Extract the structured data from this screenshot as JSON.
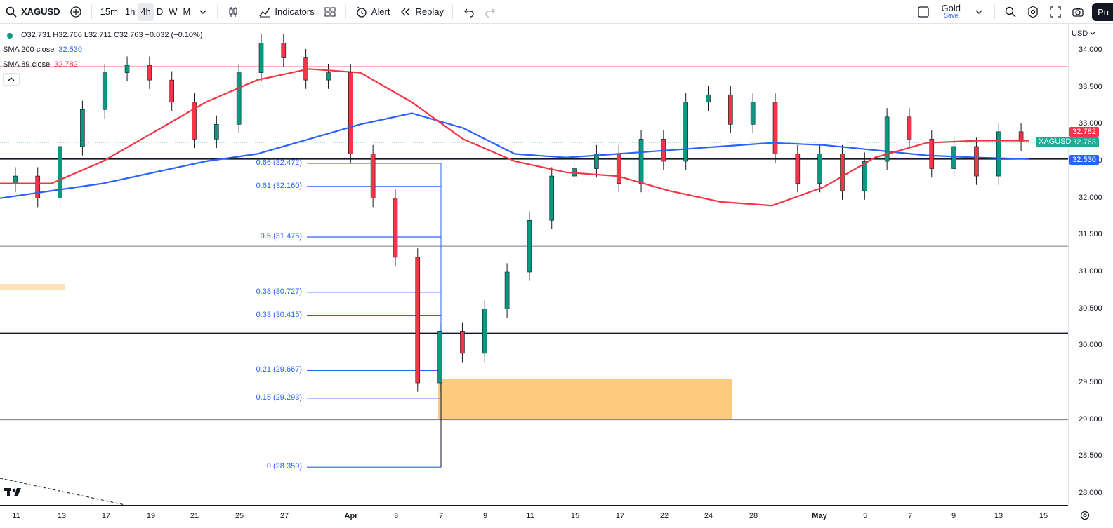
{
  "toolbar": {
    "symbol": "XAGUSD",
    "intervals": [
      "15m",
      "1h",
      "4h",
      "D",
      "W",
      "M"
    ],
    "active_interval": "4h",
    "indicators_label": "Indicators",
    "alert_label": "Alert",
    "replay_label": "Replay",
    "layout_name": "Gold",
    "layout_save": "Save",
    "publish_label": "Pu"
  },
  "legend": {
    "ohlc": "O32.731 H32.766 L32.711 C32.763 +0.032 (+0.10%)",
    "sma200_label": "SMA 200 close",
    "sma200_value": "32.530",
    "sma89_label": "SMA 89 close",
    "sma89_value": "32.782"
  },
  "price_axis": {
    "currency": "USD",
    "ticks": [
      "34.000",
      "33.500",
      "33.000",
      "32.500",
      "32.000",
      "31.500",
      "31.000",
      "30.500",
      "30.000",
      "29.500",
      "29.000",
      "28.500",
      "28.000"
    ],
    "labels": [
      {
        "text": "32.782",
        "color": "#f23645"
      },
      {
        "text": "32.763",
        "color": "#22ab94"
      },
      {
        "text": "32.530",
        "color": "#2962ff"
      }
    ],
    "symbol_tag": "XAGUSD"
  },
  "time_axis": {
    "ticks": [
      {
        "text": "11"
      },
      {
        "text": "13"
      },
      {
        "text": "17"
      },
      {
        "text": "19"
      },
      {
        "text": "21"
      },
      {
        "text": "25"
      },
      {
        "text": "27"
      },
      {
        "text": "Apr",
        "bold": true
      },
      {
        "text": "3"
      },
      {
        "text": "7"
      },
      {
        "text": "9"
      },
      {
        "text": "11"
      },
      {
        "text": "15"
      },
      {
        "text": "17"
      },
      {
        "text": "22"
      },
      {
        "text": "24"
      },
      {
        "text": "28"
      },
      {
        "text": "May",
        "bold": true
      },
      {
        "text": "5"
      },
      {
        "text": "7"
      },
      {
        "text": "9"
      },
      {
        "text": "13"
      },
      {
        "text": "15"
      }
    ]
  },
  "fib_levels": [
    {
      "label": "0.66 (32.472)",
      "price": 32.472
    },
    {
      "label": "0.61 (32.160)",
      "price": 32.16
    },
    {
      "label": "0.5 (31.475)",
      "price": 31.475
    },
    {
      "label": "0.38 (30.727)",
      "price": 30.727
    },
    {
      "label": "0.33 (30.415)",
      "price": 30.415
    },
    {
      "label": "0.21 (29.667)",
      "price": 29.667
    },
    {
      "label": "0.15 (29.293)",
      "price": 29.293
    },
    {
      "label": "0 (28.359)",
      "price": 28.359
    }
  ],
  "chart_data": {
    "type": "candlestick",
    "symbol": "XAGUSD",
    "interval": "4h",
    "ylim": [
      27.85,
      34.3
    ],
    "horizontal_lines": [
      {
        "price": 33.78,
        "color": "#f23645"
      },
      {
        "price": 32.53,
        "color": "#131722"
      },
      {
        "price": 31.35,
        "color": "#787b86"
      },
      {
        "price": 30.17,
        "color": "#131722"
      },
      {
        "price": 29.0,
        "color": "#787b86"
      }
    ],
    "zones": [
      {
        "from_price": 29.55,
        "to_price": 29.0,
        "color": "#fdc56f"
      }
    ],
    "sma200": [
      32.0,
      32.1,
      32.2,
      32.35,
      32.5,
      32.6,
      32.8,
      33.0,
      33.15,
      32.95,
      32.6,
      32.55,
      32.6,
      32.65,
      32.7,
      32.75,
      32.72,
      32.65,
      32.58,
      32.55,
      32.53
    ],
    "sma89": [
      32.2,
      32.2,
      32.5,
      32.9,
      33.3,
      33.6,
      33.75,
      33.7,
      33.3,
      32.8,
      32.5,
      32.35,
      32.3,
      32.1,
      31.95,
      31.9,
      32.15,
      32.55,
      32.75,
      32.78,
      32.78
    ],
    "candles_close": [
      32.3,
      32.0,
      32.7,
      33.2,
      33.7,
      33.8,
      33.6,
      33.3,
      32.8,
      33.0,
      33.7,
      34.1,
      33.9,
      33.6,
      33.7,
      32.6,
      32.0,
      31.2,
      29.5,
      30.2,
      29.9,
      30.5,
      31.0,
      31.7,
      32.3,
      32.4,
      32.6,
      32.2,
      32.8,
      32.5,
      33.3,
      33.4,
      33.0,
      33.3,
      32.6,
      32.2,
      32.6,
      32.1,
      32.5,
      33.1,
      32.8,
      32.4,
      32.7,
      32.3,
      32.9,
      32.76
    ]
  }
}
